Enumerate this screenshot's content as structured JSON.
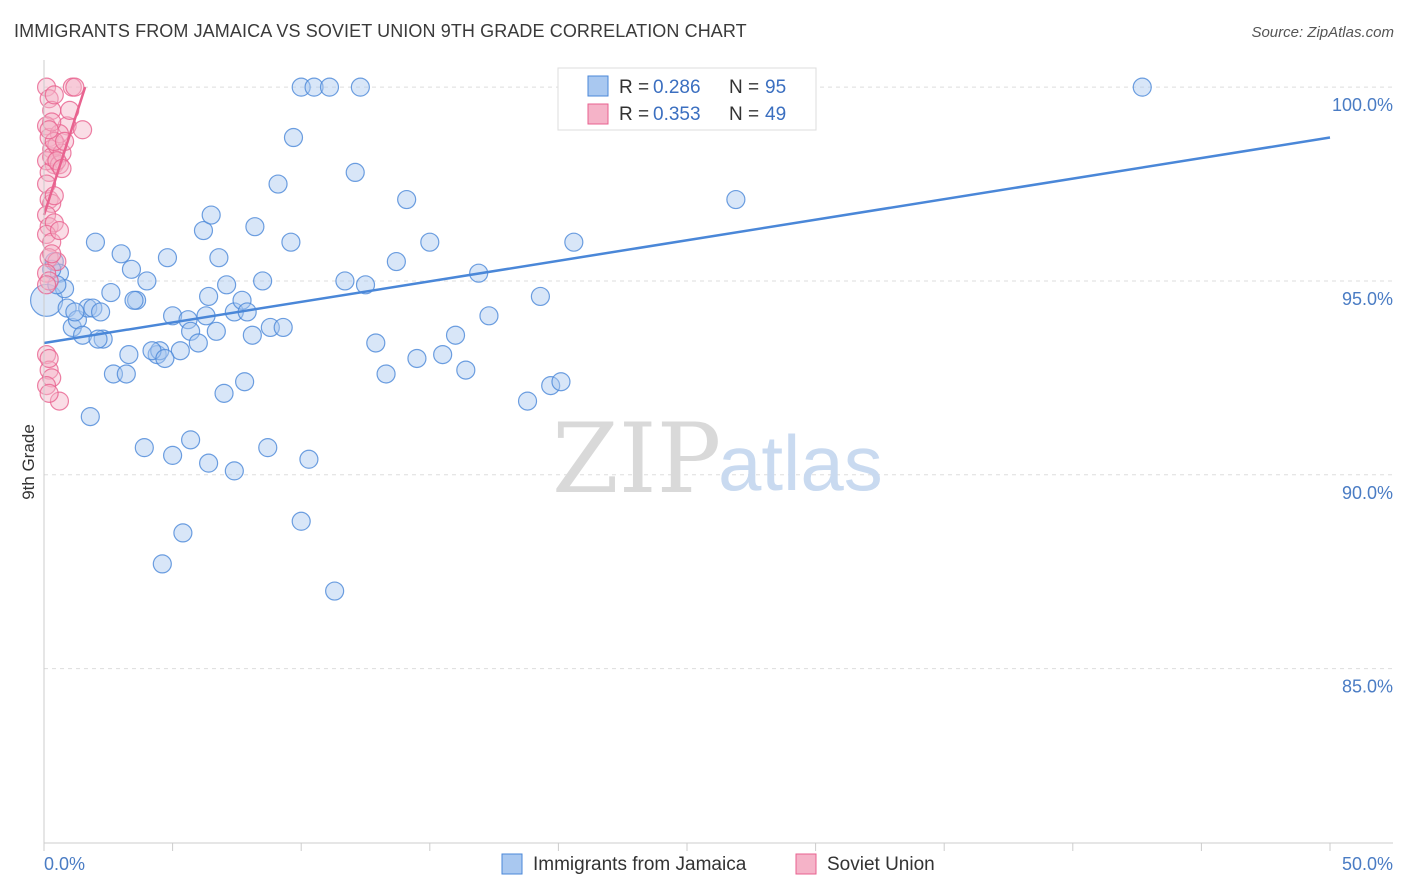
{
  "title": "IMMIGRANTS FROM JAMAICA VS SOVIET UNION 9TH GRADE CORRELATION CHART",
  "source": "Source: ZipAtlas.com",
  "watermark": {
    "zip": "ZIP",
    "atlas": "atlas"
  },
  "colors": {
    "blue": "#4a87d8",
    "blue_fill": "#a9c8f0",
    "pink": "#e8628f",
    "pink_fill": "#f5b3c8",
    "grid": "#dddddd",
    "axis_label": "#4a7cc4"
  },
  "legend": {
    "rows": [
      {
        "r_label": "R = ",
        "r_value": "0.286",
        "n_label": "N = ",
        "n_value": "95"
      },
      {
        "r_label": "R = ",
        "r_value": "0.353",
        "n_label": "N = ",
        "n_value": "49"
      }
    ]
  },
  "bottom_legend": [
    "Immigrants from Jamaica",
    "Soviet Union"
  ],
  "chart_data": {
    "type": "scatter",
    "title": "IMMIGRANTS FROM JAMAICA VS SOVIET UNION 9TH GRADE CORRELATION CHART",
    "xlabel": "",
    "ylabel": "9th Grade",
    "xlim": [
      0,
      50
    ],
    "ylim": [
      80.5,
      100.7
    ],
    "x_tick_labels": [
      "0.0%",
      "50.0%"
    ],
    "y_ticks": [
      85,
      90,
      95,
      100
    ],
    "y_tick_labels": [
      "85.0%",
      "90.0%",
      "95.0%",
      "100.0%"
    ],
    "grid": true,
    "legend_position": "top-center",
    "series": [
      {
        "name": "Immigrants from Jamaica",
        "color": "#4a87d8",
        "trend": {
          "x": [
            0,
            50
          ],
          "y": [
            93.4,
            98.7
          ]
        },
        "points": [
          [
            0.1,
            94.5
          ],
          [
            0.4,
            95.5
          ],
          [
            0.6,
            95.2
          ],
          [
            0.8,
            94.8
          ],
          [
            0.9,
            94.3
          ],
          [
            1.1,
            93.8
          ],
          [
            1.3,
            94.0
          ],
          [
            1.5,
            93.6
          ],
          [
            1.7,
            94.3
          ],
          [
            1.9,
            94.3
          ],
          [
            2.0,
            96.0
          ],
          [
            2.2,
            94.2
          ],
          [
            2.6,
            94.7
          ],
          [
            3.0,
            95.7
          ],
          [
            3.4,
            95.3
          ],
          [
            2.7,
            92.6
          ],
          [
            2.3,
            93.5
          ],
          [
            3.2,
            92.6
          ],
          [
            3.3,
            93.1
          ],
          [
            3.6,
            94.5
          ],
          [
            4.0,
            95.0
          ],
          [
            4.4,
            93.1
          ],
          [
            4.5,
            93.2
          ],
          [
            4.2,
            93.2
          ],
          [
            5.0,
            94.1
          ],
          [
            4.8,
            95.6
          ],
          [
            5.3,
            93.2
          ],
          [
            5.6,
            94.0
          ],
          [
            5.7,
            93.7
          ],
          [
            6.0,
            93.4
          ],
          [
            6.3,
            94.1
          ],
          [
            6.4,
            94.6
          ],
          [
            6.7,
            93.7
          ],
          [
            6.2,
            96.3
          ],
          [
            6.5,
            96.7
          ],
          [
            6.8,
            95.6
          ],
          [
            7.1,
            94.9
          ],
          [
            7.4,
            94.2
          ],
          [
            7.7,
            94.5
          ],
          [
            7.9,
            94.2
          ],
          [
            8.1,
            93.6
          ],
          [
            8.2,
            96.4
          ],
          [
            8.5,
            95.0
          ],
          [
            8.8,
            93.8
          ],
          [
            9.1,
            97.5
          ],
          [
            9.3,
            93.8
          ],
          [
            9.6,
            96.0
          ],
          [
            9.7,
            98.7
          ],
          [
            10.0,
            100.0
          ],
          [
            10.5,
            100.0
          ],
          [
            11.1,
            100.0
          ],
          [
            12.3,
            100.0
          ],
          [
            11.7,
            95.0
          ],
          [
            12.1,
            97.8
          ],
          [
            12.5,
            94.9
          ],
          [
            12.9,
            93.4
          ],
          [
            13.3,
            92.6
          ],
          [
            13.7,
            95.5
          ],
          [
            14.1,
            97.1
          ],
          [
            14.5,
            93.0
          ],
          [
            15.0,
            96.0
          ],
          [
            15.5,
            93.1
          ],
          [
            16.0,
            93.6
          ],
          [
            16.4,
            92.7
          ],
          [
            16.9,
            95.2
          ],
          [
            17.3,
            94.1
          ],
          [
            3.9,
            90.7
          ],
          [
            4.6,
            87.7
          ],
          [
            5.0,
            90.5
          ],
          [
            5.4,
            88.5
          ],
          [
            5.7,
            90.9
          ],
          [
            6.4,
            90.3
          ],
          [
            7.0,
            92.1
          ],
          [
            7.4,
            90.1
          ],
          [
            7.8,
            92.4
          ],
          [
            8.7,
            90.7
          ],
          [
            10.0,
            88.8
          ],
          [
            10.3,
            90.4
          ],
          [
            11.3,
            87.0
          ],
          [
            1.8,
            91.5
          ],
          [
            18.8,
            91.9
          ],
          [
            19.3,
            94.6
          ],
          [
            19.7,
            92.3
          ],
          [
            20.1,
            92.4
          ],
          [
            20.6,
            96.0
          ],
          [
            21.2,
            100.0
          ],
          [
            24.1,
            100.0
          ],
          [
            26.9,
            97.1
          ],
          [
            42.7,
            100.0
          ],
          [
            0.3,
            95.3
          ],
          [
            0.5,
            94.9
          ],
          [
            1.2,
            94.2
          ],
          [
            2.1,
            93.5
          ],
          [
            3.5,
            94.5
          ],
          [
            4.7,
            93.0
          ]
        ]
      },
      {
        "name": "Soviet Union",
        "color": "#e8628f",
        "trend": {
          "x": [
            0,
            1.6
          ],
          "y": [
            96.7,
            100.0
          ]
        },
        "points": [
          [
            0.1,
            100.0
          ],
          [
            0.2,
            99.7
          ],
          [
            0.3,
            99.4
          ],
          [
            0.1,
            99.0
          ],
          [
            0.2,
            98.7
          ],
          [
            0.3,
            98.4
          ],
          [
            0.4,
            98.0
          ],
          [
            0.1,
            98.1
          ],
          [
            0.2,
            97.8
          ],
          [
            0.3,
            98.2
          ],
          [
            0.5,
            98.5
          ],
          [
            0.6,
            98.0
          ],
          [
            0.7,
            98.3
          ],
          [
            0.9,
            99.0
          ],
          [
            1.1,
            100.0
          ],
          [
            1.2,
            100.0
          ],
          [
            1.5,
            98.9
          ],
          [
            1.0,
            99.4
          ],
          [
            0.4,
            99.8
          ],
          [
            0.6,
            98.8
          ],
          [
            0.2,
            97.1
          ],
          [
            0.3,
            97.0
          ],
          [
            0.1,
            96.7
          ],
          [
            0.2,
            96.4
          ],
          [
            0.4,
            96.5
          ],
          [
            0.1,
            96.2
          ],
          [
            0.3,
            96.0
          ],
          [
            0.2,
            95.6
          ],
          [
            0.5,
            95.5
          ],
          [
            0.1,
            95.2
          ],
          [
            0.2,
            95.0
          ],
          [
            0.1,
            94.9
          ],
          [
            0.1,
            93.1
          ],
          [
            0.2,
            92.7
          ],
          [
            0.3,
            92.5
          ],
          [
            0.1,
            92.3
          ],
          [
            0.6,
            91.9
          ],
          [
            0.2,
            92.1
          ],
          [
            0.4,
            98.6
          ],
          [
            0.5,
            98.1
          ],
          [
            0.3,
            99.1
          ],
          [
            0.7,
            97.9
          ],
          [
            0.8,
            98.6
          ],
          [
            0.2,
            98.9
          ],
          [
            0.1,
            97.5
          ],
          [
            0.4,
            97.2
          ],
          [
            0.6,
            96.3
          ],
          [
            0.3,
            95.7
          ],
          [
            0.2,
            93.0
          ]
        ]
      }
    ]
  }
}
